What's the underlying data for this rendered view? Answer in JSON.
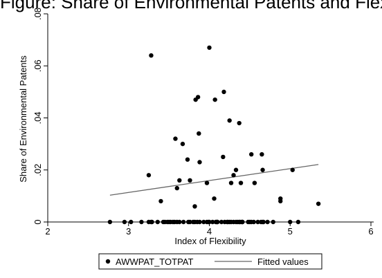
{
  "chart_data": {
    "type": "scatter",
    "title": "Figure: Share of Environmental Patents and Flexibility",
    "xlabel": "Index of Flexibility",
    "ylabel": "Share of Environmental Patents",
    "xlim": [
      2,
      6
    ],
    "ylim": [
      0,
      0.08
    ],
    "x_ticks": [
      "2",
      "3",
      "4",
      "5",
      "6"
    ],
    "y_ticks": [
      "0",
      ".02",
      ".04",
      ".06",
      ".08"
    ],
    "grid": false,
    "legend_position": "bottom",
    "series": [
      {
        "name": "AWWPAT_TOTPAT",
        "kind": "scatter",
        "color": "#000000",
        "x": [
          2.77,
          2.95,
          3.03,
          3.16,
          3.25,
          3.28,
          3.29,
          3.36,
          3.45,
          3.48,
          3.5,
          3.52,
          3.55,
          3.57,
          3.6,
          3.63,
          3.68,
          3.74,
          3.76,
          3.8,
          3.82,
          3.85,
          3.88,
          3.93,
          3.97,
          3.99,
          4.0,
          4.04,
          4.08,
          4.09,
          4.1,
          4.1,
          4.15,
          4.19,
          4.22,
          4.23,
          4.25,
          4.27,
          4.3,
          4.33,
          4.35,
          4.37,
          4.38,
          4.4,
          4.41,
          4.41,
          4.48,
          4.5,
          4.52,
          4.55,
          4.6,
          4.64,
          4.66,
          4.67,
          4.72,
          4.79,
          5.0,
          5.1,
          5.35,
          3.28,
          3.25,
          3.4,
          3.6,
          3.63,
          3.67,
          3.76,
          3.82,
          3.83,
          3.86,
          3.87,
          4.0,
          4.06,
          4.18,
          4.25,
          4.3,
          4.33,
          4.37,
          4.66,
          4.88,
          4.88,
          5.03,
          3.43,
          3.58,
          3.73,
          3.88,
          3.97,
          4.07,
          4.17,
          4.27,
          4.39,
          4.52,
          4.56,
          4.65
        ],
        "y": [
          0.0,
          0.0,
          0.0,
          0.0,
          0.0,
          0.0,
          0.0,
          0.0,
          0.0,
          0.0,
          0.0,
          0.0,
          0.0,
          0.0,
          0.0,
          0.0,
          0.0,
          0.0,
          0.0,
          0.0,
          0.0,
          0.0,
          0.0,
          0.0,
          0.0,
          0.0,
          0.0,
          0.0,
          0.0,
          0.0,
          0.0,
          0.0,
          0.0,
          0.0,
          0.0,
          0.0,
          0.0,
          0.0,
          0.0,
          0.0,
          0.0,
          0.0,
          0.0,
          0.0,
          0.0,
          0.0,
          0.0,
          0.0,
          0.0,
          0.0,
          0.0,
          0.0,
          0.0,
          0.0,
          0.0,
          0.0,
          0.0,
          0.0,
          0.007,
          0.064,
          0.018,
          0.008,
          0.013,
          0.016,
          0.03,
          0.016,
          0.006,
          0.047,
          0.048,
          0.034,
          0.067,
          0.009,
          0.05,
          0.039,
          0.018,
          0.02,
          0.038,
          0.02,
          0.009,
          0.008,
          0.02,
          0.0,
          0.032,
          0.024,
          0.023,
          0.015,
          0.047,
          0.025,
          0.015,
          0.015,
          0.026,
          0.015,
          0.026
        ]
      },
      {
        "name": "Fitted values",
        "kind": "line",
        "color": "#666666",
        "x": [
          2.77,
          5.35
        ],
        "y": [
          0.0103,
          0.0221
        ]
      }
    ]
  }
}
